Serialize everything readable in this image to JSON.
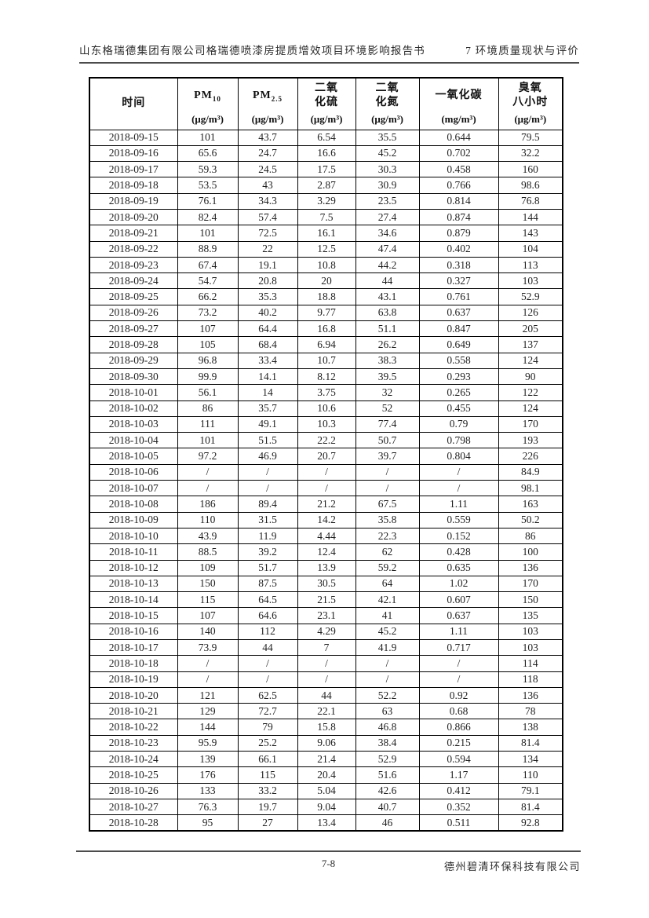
{
  "page": {
    "header": {
      "left_title": "山东格瑞德集团有限公司格瑞德喷漆房提质增效项目环境影响报告书",
      "right_title": "7 环境质量现状与评价"
    },
    "footer": {
      "page_number": "7-8",
      "company": "德州碧清环保科技有限公司"
    }
  },
  "table": {
    "columns": [
      {
        "name_lines": [
          "时间"
        ],
        "unit": ""
      },
      {
        "name_main": "PM",
        "name_sub": "10",
        "unit": "(μg/m³)"
      },
      {
        "name_main": "PM",
        "name_sub": "2.5",
        "unit": "(μg/m³)"
      },
      {
        "name_lines": [
          "二氧",
          "化硫"
        ],
        "unit": "(μg/m³)"
      },
      {
        "name_lines": [
          "二氧",
          "化氮"
        ],
        "unit": "(μg/m³)"
      },
      {
        "name_lines": [
          "一氧化碳"
        ],
        "unit": "(mg/m³)"
      },
      {
        "name_lines": [
          "臭氧",
          "八小时"
        ],
        "unit": "(μg/m³)"
      }
    ],
    "rows": [
      [
        "2018-09-15",
        "101",
        "43.7",
        "6.54",
        "35.5",
        "0.644",
        "79.5"
      ],
      [
        "2018-09-16",
        "65.6",
        "24.7",
        "16.6",
        "45.2",
        "0.702",
        "32.2"
      ],
      [
        "2018-09-17",
        "59.3",
        "24.5",
        "17.5",
        "30.3",
        "0.458",
        "160"
      ],
      [
        "2018-09-18",
        "53.5",
        "43",
        "2.87",
        "30.9",
        "0.766",
        "98.6"
      ],
      [
        "2018-09-19",
        "76.1",
        "34.3",
        "3.29",
        "23.5",
        "0.814",
        "76.8"
      ],
      [
        "2018-09-20",
        "82.4",
        "57.4",
        "7.5",
        "27.4",
        "0.874",
        "144"
      ],
      [
        "2018-09-21",
        "101",
        "72.5",
        "16.1",
        "34.6",
        "0.879",
        "143"
      ],
      [
        "2018-09-22",
        "88.9",
        "22",
        "12.5",
        "47.4",
        "0.402",
        "104"
      ],
      [
        "2018-09-23",
        "67.4",
        "19.1",
        "10.8",
        "44.2",
        "0.318",
        "113"
      ],
      [
        "2018-09-24",
        "54.7",
        "20.8",
        "20",
        "44",
        "0.327",
        "103"
      ],
      [
        "2018-09-25",
        "66.2",
        "35.3",
        "18.8",
        "43.1",
        "0.761",
        "52.9"
      ],
      [
        "2018-09-26",
        "73.2",
        "40.2",
        "9.77",
        "63.8",
        "0.637",
        "126"
      ],
      [
        "2018-09-27",
        "107",
        "64.4",
        "16.8",
        "51.1",
        "0.847",
        "205"
      ],
      [
        "2018-09-28",
        "105",
        "68.4",
        "6.94",
        "26.2",
        "0.649",
        "137"
      ],
      [
        "2018-09-29",
        "96.8",
        "33.4",
        "10.7",
        "38.3",
        "0.558",
        "124"
      ],
      [
        "2018-09-30",
        "99.9",
        "14.1",
        "8.12",
        "39.5",
        "0.293",
        "90"
      ],
      [
        "2018-10-01",
        "56.1",
        "14",
        "3.75",
        "32",
        "0.265",
        "122"
      ],
      [
        "2018-10-02",
        "86",
        "35.7",
        "10.6",
        "52",
        "0.455",
        "124"
      ],
      [
        "2018-10-03",
        "111",
        "49.1",
        "10.3",
        "77.4",
        "0.79",
        "170"
      ],
      [
        "2018-10-04",
        "101",
        "51.5",
        "22.2",
        "50.7",
        "0.798",
        "193"
      ],
      [
        "2018-10-05",
        "97.2",
        "46.9",
        "20.7",
        "39.7",
        "0.804",
        "226"
      ],
      [
        "2018-10-06",
        "/",
        "/",
        "/",
        "/",
        "/",
        "84.9"
      ],
      [
        "2018-10-07",
        "/",
        "/",
        "/",
        "/",
        "/",
        "98.1"
      ],
      [
        "2018-10-08",
        "186",
        "89.4",
        "21.2",
        "67.5",
        "1.11",
        "163"
      ],
      [
        "2018-10-09",
        "110",
        "31.5",
        "14.2",
        "35.8",
        "0.559",
        "50.2"
      ],
      [
        "2018-10-10",
        "43.9",
        "11.9",
        "4.44",
        "22.3",
        "0.152",
        "86"
      ],
      [
        "2018-10-11",
        "88.5",
        "39.2",
        "12.4",
        "62",
        "0.428",
        "100"
      ],
      [
        "2018-10-12",
        "109",
        "51.7",
        "13.9",
        "59.2",
        "0.635",
        "136"
      ],
      [
        "2018-10-13",
        "150",
        "87.5",
        "30.5",
        "64",
        "1.02",
        "170"
      ],
      [
        "2018-10-14",
        "115",
        "64.5",
        "21.5",
        "42.1",
        "0.607",
        "150"
      ],
      [
        "2018-10-15",
        "107",
        "64.6",
        "23.1",
        "41",
        "0.637",
        "135"
      ],
      [
        "2018-10-16",
        "140",
        "112",
        "4.29",
        "45.2",
        "1.11",
        "103"
      ],
      [
        "2018-10-17",
        "73.9",
        "44",
        "7",
        "41.9",
        "0.717",
        "103"
      ],
      [
        "2018-10-18",
        "/",
        "/",
        "/",
        "/",
        "/",
        "114"
      ],
      [
        "2018-10-19",
        "/",
        "/",
        "/",
        "/",
        "/",
        "118"
      ],
      [
        "2018-10-20",
        "121",
        "62.5",
        "44",
        "52.2",
        "0.92",
        "136"
      ],
      [
        "2018-10-21",
        "129",
        "72.7",
        "22.1",
        "63",
        "0.68",
        "78"
      ],
      [
        "2018-10-22",
        "144",
        "79",
        "15.8",
        "46.8",
        "0.866",
        "138"
      ],
      [
        "2018-10-23",
        "95.9",
        "25.2",
        "9.06",
        "38.4",
        "0.215",
        "81.4"
      ],
      [
        "2018-10-24",
        "139",
        "66.1",
        "21.4",
        "52.9",
        "0.594",
        "134"
      ],
      [
        "2018-10-25",
        "176",
        "115",
        "20.4",
        "51.6",
        "1.17",
        "110"
      ],
      [
        "2018-10-26",
        "133",
        "33.2",
        "5.04",
        "42.6",
        "0.412",
        "79.1"
      ],
      [
        "2018-10-27",
        "76.3",
        "19.7",
        "9.04",
        "40.7",
        "0.352",
        "81.4"
      ],
      [
        "2018-10-28",
        "95",
        "27",
        "13.4",
        "46",
        "0.511",
        "92.8"
      ]
    ]
  }
}
